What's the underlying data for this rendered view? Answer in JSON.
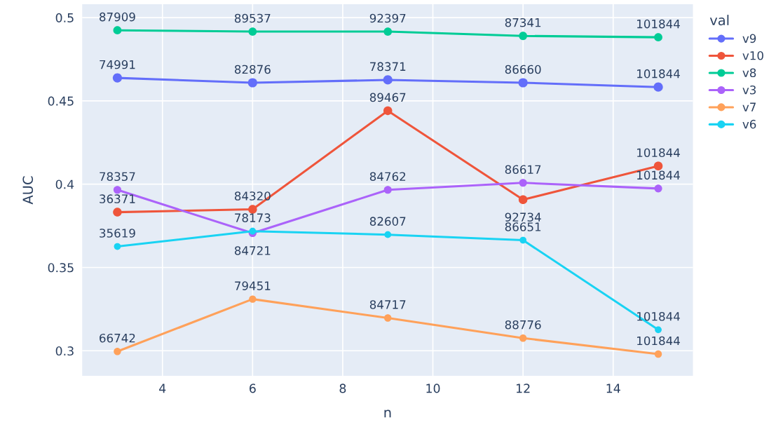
{
  "chart_data": {
    "type": "line",
    "xlabel": "n",
    "ylabel": "AUC",
    "legend_title": "val",
    "x": [
      3,
      6,
      9,
      12,
      15
    ],
    "series": [
      {
        "name": "v9",
        "color": "#636efa",
        "values": [
          0.4638,
          0.4609,
          0.4626,
          0.4609,
          0.4583
        ]
      },
      {
        "name": "v10",
        "color": "#ef553b",
        "values": [
          0.3832,
          0.3849,
          0.4441,
          0.3907,
          0.4109
        ]
      },
      {
        "name": "v8",
        "color": "#00cc96",
        "values": [
          0.4924,
          0.4916,
          0.4916,
          0.489,
          0.4882
        ]
      },
      {
        "name": "v3",
        "color": "#ab63fa",
        "values": [
          0.3966,
          0.3706,
          0.3966,
          0.4008,
          0.3974
        ]
      },
      {
        "name": "v7",
        "color": "#ffa15a",
        "values": [
          0.2996,
          0.331,
          0.3197,
          0.3076,
          0.298
        ]
      },
      {
        "name": "v6",
        "color": "#19d3f3",
        "values": [
          0.3626,
          0.3718,
          0.3697,
          0.3664,
          0.3126
        ]
      }
    ],
    "annotations": [
      {
        "text": "74991",
        "x": 3,
        "y": 0.4638
      },
      {
        "text": "82876",
        "x": 6,
        "y": 0.4609
      },
      {
        "text": "78371",
        "x": 9,
        "y": 0.4626
      },
      {
        "text": "86660",
        "x": 12,
        "y": 0.4609
      },
      {
        "text": "101844",
        "x": 15,
        "y": 0.4583
      },
      {
        "text": "36371",
        "x": 3,
        "y": 0.3832
      },
      {
        "text": "84320",
        "x": 6,
        "y": 0.3849
      },
      {
        "text": "89467",
        "x": 9,
        "y": 0.4441
      },
      {
        "text": "92734",
        "x": 12,
        "y": 0.3907
      },
      {
        "text": "101844",
        "x": 15,
        "y": 0.4109
      },
      {
        "text": "87909",
        "x": 3,
        "y": 0.4924
      },
      {
        "text": "89537",
        "x": 6,
        "y": 0.4916
      },
      {
        "text": "92397",
        "x": 9,
        "y": 0.4916
      },
      {
        "text": "87341",
        "x": 12,
        "y": 0.489
      },
      {
        "text": "101844",
        "x": 15,
        "y": 0.4882
      },
      {
        "text": "78357",
        "x": 3,
        "y": 0.3966
      },
      {
        "text": "84721",
        "x": 6,
        "y": 0.3706
      },
      {
        "text": "84762",
        "x": 9,
        "y": 0.3966
      },
      {
        "text": "86617",
        "x": 12,
        "y": 0.4008
      },
      {
        "text": "101844",
        "x": 15,
        "y": 0.3974
      },
      {
        "text": "66742",
        "x": 3,
        "y": 0.2996
      },
      {
        "text": "79451",
        "x": 6,
        "y": 0.331
      },
      {
        "text": "84717",
        "x": 9,
        "y": 0.3197
      },
      {
        "text": "88776",
        "x": 12,
        "y": 0.3076
      },
      {
        "text": "101844",
        "x": 15,
        "y": 0.298
      },
      {
        "text": "35619",
        "x": 3,
        "y": 0.3626
      },
      {
        "text": "78173",
        "x": 6,
        "y": 0.3718
      },
      {
        "text": "82607",
        "x": 9,
        "y": 0.3697
      },
      {
        "text": "86651",
        "x": 12,
        "y": 0.3664
      },
      {
        "text": "101844",
        "x": 15,
        "y": 0.3126
      }
    ],
    "xlim": [
      2.22,
      15.77
    ],
    "ylim": [
      0.285,
      0.508
    ],
    "xticks": [
      4,
      6,
      8,
      10,
      12,
      14
    ],
    "yticks": [
      {
        "value": 0.3,
        "label": "0.3"
      },
      {
        "value": 0.35,
        "label": "0.35"
      },
      {
        "value": 0.4,
        "label": "0.4"
      },
      {
        "value": 0.45,
        "label": "0.45"
      },
      {
        "value": 0.5,
        "label": "0.5"
      }
    ],
    "grid": true,
    "legend": "right",
    "marker": "circle",
    "line_style": "solid"
  }
}
